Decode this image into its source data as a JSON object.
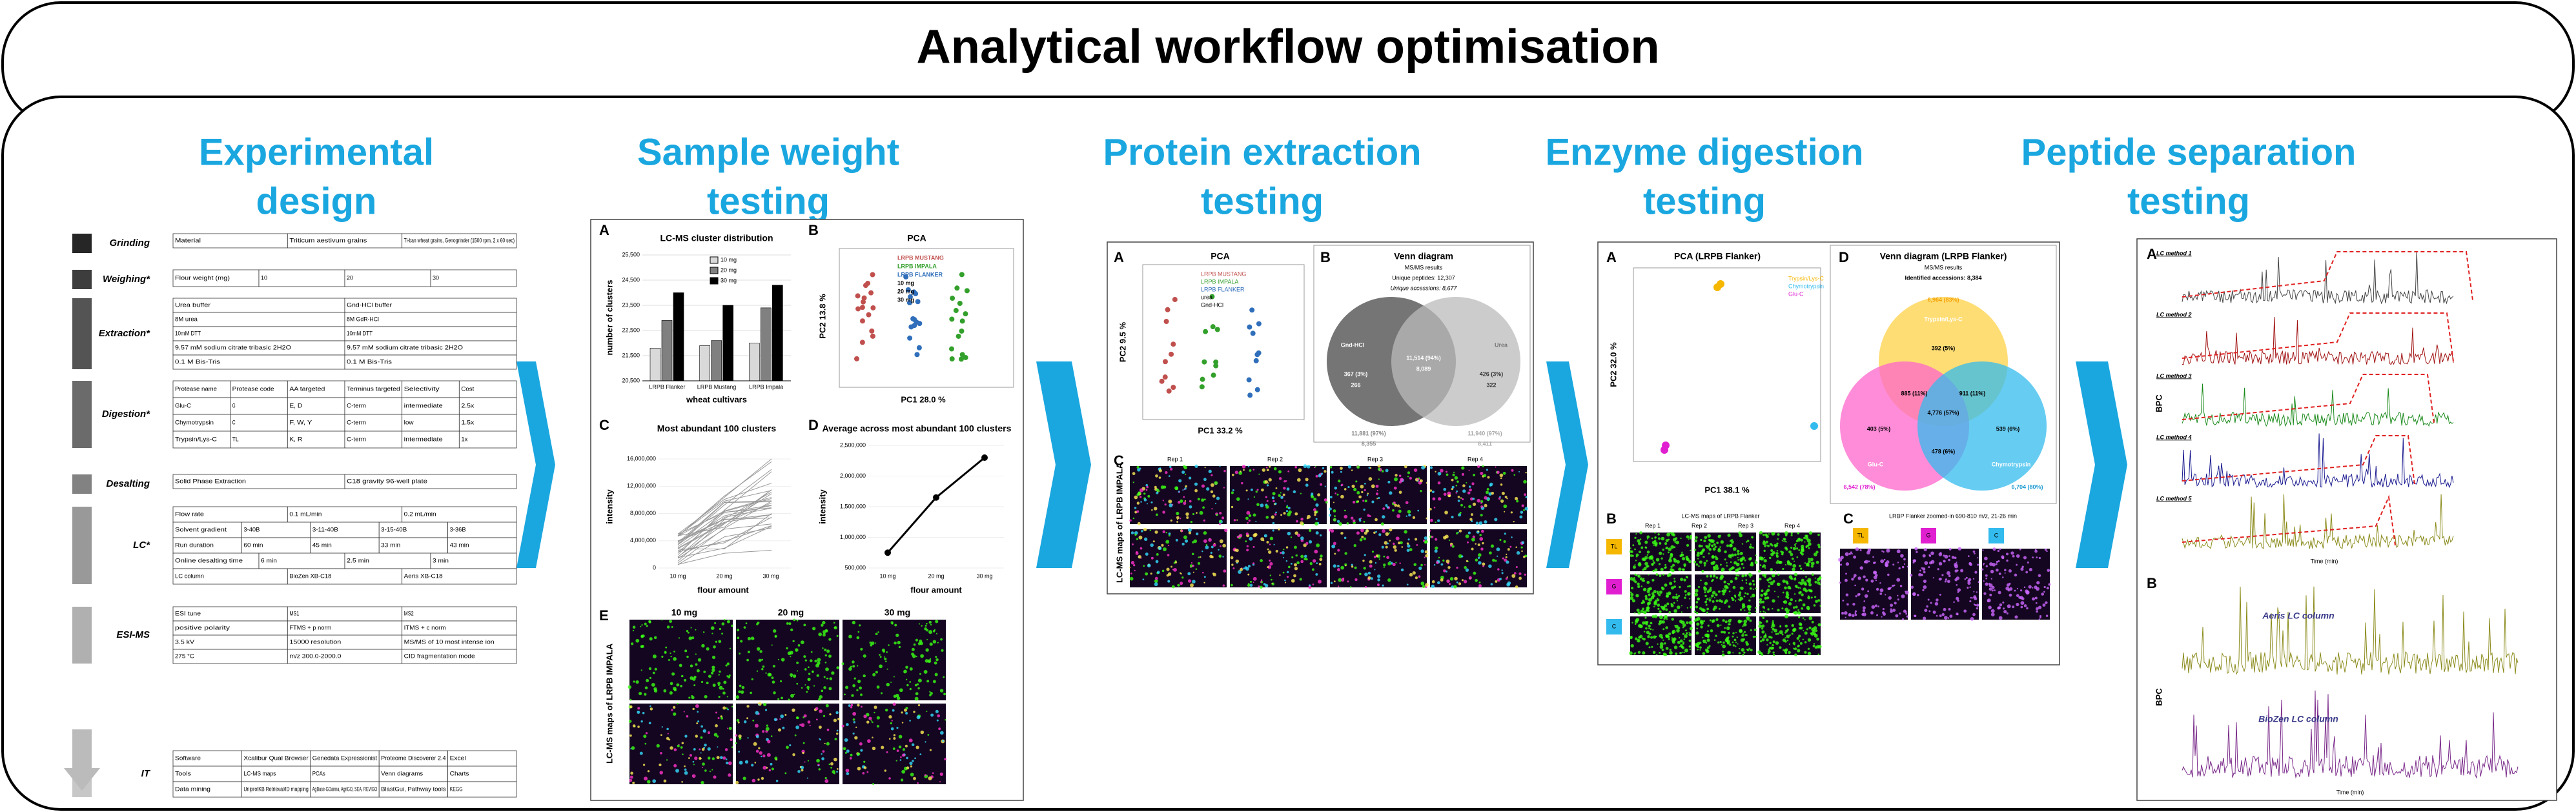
{
  "title": "Analytical workflow optimisation",
  "stages": [
    {
      "heading": [
        "Experimental",
        "design"
      ]
    },
    {
      "heading": [
        "Sample weight",
        "testing"
      ]
    },
    {
      "heading": [
        "Protein extraction",
        "testing"
      ]
    },
    {
      "heading": [
        "Enzyme digestion",
        "testing"
      ]
    },
    {
      "heading": [
        "Peptide separation",
        "testing"
      ]
    }
  ],
  "design": {
    "steps": [
      {
        "name": "Grinding",
        "rows": [
          [
            "Material",
            "Triticum aestivum grains",
            "Ti-ban wheat grains, Genogrinder (1500 rpm, 2 x 60 sec)"
          ]
        ]
      },
      {
        "name": "Weighing*",
        "rows": [
          [
            "Flour weight (mg)",
            "10",
            "20",
            "30"
          ]
        ]
      },
      {
        "name": "Extraction*",
        "rows": [
          [
            "Urea buffer",
            "Gnd-HCl buffer"
          ],
          [
            "8M urea",
            "8M GdR-HCl"
          ],
          [
            "10mM DTT",
            "10mM DTT"
          ],
          [
            "9.57 mM sodium citrate tribasic 2H2O",
            "9.57 mM sodium citrate tribasic 2H2O"
          ],
          [
            "0.1 M Bis-Tris",
            "0.1 M Bis-Tris"
          ]
        ]
      },
      {
        "name": "Digestion*",
        "rows": [
          [
            "Protease name",
            "Protease code",
            "AA targeted",
            "Terminus targeted",
            "Selectivity",
            "Cost"
          ],
          [
            "Glu-C",
            "G",
            "E, D",
            "C-term",
            "intermediate",
            "2.5x"
          ],
          [
            "Chymotrypsin",
            "C",
            "F, W, Y",
            "C-term",
            "low",
            "1.5x"
          ],
          [
            "Trypsin/Lys-C",
            "TL",
            "K, R",
            "C-term",
            "intermediate",
            "1x"
          ]
        ]
      },
      {
        "name": "Desalting",
        "rows": [
          [
            "Solid Phase Extraction",
            "C18 gravity 96-well plate"
          ]
        ]
      },
      {
        "name": "LC*",
        "rows": [
          [
            "Flow rate",
            "0.1 mL/min",
            "0.2 mL/min"
          ],
          [
            "Solvent gradient",
            "3-40B",
            "3-11-40B",
            "3-15-40B",
            "3-36B"
          ],
          [
            "Run duration",
            "60 min",
            "45 min",
            "33 min",
            "43 min"
          ],
          [
            "Online desalting time",
            "6 min",
            "2.5 min",
            "3 min"
          ],
          [
            "LC column",
            "BioZen XB-C18",
            "Aeris XB-C18"
          ]
        ]
      },
      {
        "name": "ESI-MS",
        "rows": [
          [
            "ESI tune",
            "MS1",
            "MS2"
          ],
          [
            "positive polarity",
            "FTMS + p norm",
            "ITMS + c norm"
          ],
          [
            "3.5 kV",
            "15000 resolution",
            "MS/MS of 10 most intense ion"
          ],
          [
            "275 °C",
            "m/z 300.0-2000.0",
            "CID fragmentation mode"
          ]
        ]
      },
      {
        "name": "IT",
        "rows": [
          [
            "Software",
            "Xcalibur Qual Browser",
            "Genedata Expressionist",
            "Proteome Discoverer 2.4",
            "Excel"
          ],
          [
            "Tools",
            "LC-MS maps",
            "PCAs",
            "Venn diagrams",
            "Charts"
          ],
          [
            "Data mining",
            "UniprotKB Retrieval/ID mapping",
            "AgBase-GOanna, AgriGO, SEA, REVIGO",
            "BlastGui, Pathway tools",
            "KEGG"
          ]
        ]
      }
    ]
  },
  "sample_weight": {
    "A": {
      "label": "A",
      "title": "LC-MS cluster distribution",
      "y_label": "number of clusters",
      "x_label": "wheat cultivars",
      "categories": [
        "LRPB Flanker",
        "LRPB Mustang",
        "LRPB Impala"
      ],
      "series": [
        {
          "name": "10 mg",
          "color": "#d9d9d9",
          "values": [
            21800,
            21900,
            22000
          ]
        },
        {
          "name": "20 mg",
          "color": "#808080",
          "values": [
            22900,
            22100,
            23400
          ]
        },
        {
          "name": "30 mg",
          "color": "#000000",
          "values": [
            24000,
            23500,
            24300
          ]
        }
      ],
      "ylim": [
        20500,
        25500
      ],
      "yticks": [
        {
          "value": 20500,
          "label": "20,500"
        },
        {
          "value": 21500,
          "label": "21,500"
        },
        {
          "value": 22500,
          "label": "22,500"
        },
        {
          "value": 23500,
          "label": "23,500"
        },
        {
          "value": 24500,
          "label": "24,500"
        },
        {
          "value": 25500,
          "label": "25,500"
        }
      ]
    },
    "B": {
      "label": "B",
      "title": "PCA",
      "x_label": "PC1 28.0 %",
      "y_label": "PC2 13.8 %",
      "legend": [
        "LRPB MUSTANG",
        "LRPB IMPALA",
        "LRPB FLANKER",
        "10 mg",
        "20 mg",
        "30 mg"
      ]
    },
    "C": {
      "label": "C",
      "title": "Most abundant 100 clusters",
      "y_label": "intensity",
      "x_label": "flour amount",
      "categories": [
        "10 mg",
        "20 mg",
        "30 mg"
      ],
      "ylim": [
        0,
        18000000
      ],
      "yticks": [
        0,
        {
          "value": 4000000,
          "label": "4,000,000"
        },
        {
          "value": 8000000,
          "label": "8,000,000"
        },
        {
          "value": 12000000,
          "label": "12,000,000"
        },
        {
          "value": 16000000,
          "label": "16,000,000"
        }
      ]
    },
    "D": {
      "label": "D",
      "title": "Average across most abundant 100 clusters",
      "y_label": "intensity",
      "x_label": "flour amount",
      "categories": [
        "10 mg",
        "20 mg",
        "30 mg"
      ],
      "values": [
        750000,
        1650000,
        2300000
      ],
      "ylim": [
        500000,
        2500000
      ],
      "yticks": [
        {
          "value": 500000,
          "label": "500,000"
        },
        {
          "value": 1000000,
          "label": "1,000,000"
        },
        {
          "value": 1500000,
          "label": "1,500,000"
        },
        {
          "value": 2000000,
          "label": "2,000,000"
        },
        {
          "value": 2500000,
          "label": "2,500,000"
        }
      ]
    },
    "E": {
      "label": "E",
      "y_label": "LC-MS maps of LRPB IMPALA",
      "columns": [
        "10 mg",
        "20 mg",
        "30 mg"
      ]
    }
  },
  "protein": {
    "A": {
      "label": "A",
      "title": "PCA",
      "x_label": "PC1 33.2 %",
      "y_label": "PC2 9.5 %",
      "legend": [
        "LRPB MUSTANG",
        "LRPB IMPALA",
        "LRPB FLANKER",
        "urea",
        "Gnd-HCl"
      ]
    },
    "B": {
      "label": "B",
      "title": "Venn diagram",
      "subtitle": "MS/MS results",
      "peptides": "Unique peptides: 12,307",
      "accessions": "Unique accessions: 8,677",
      "left": "Gnd-HCl",
      "right": "Urea",
      "center": "11,514 (94%)",
      "center_acc": "8,089",
      "left_only": "367 (3%)",
      "left_acc": "266",
      "right_only": "426 (3%)",
      "right_acc": "322",
      "left_total": "11,881 (97%)",
      "left_total_acc": "8,355",
      "right_total": "11,940 (97%)",
      "right_total_acc": "8,411"
    },
    "C": {
      "label": "C",
      "y_label": "LC-MS maps of LRPB IMPALA",
      "columns": [
        "Rep 1",
        "Rep 2",
        "Rep 3",
        "Rep 4"
      ]
    }
  },
  "enzyme": {
    "A": {
      "label": "A",
      "title": "PCA (LRPB Flanker)",
      "x_label": "PC1 38.1 %",
      "y_label": "PC2 32.0 %",
      "legend": [
        "Trypsin/Lys-C",
        "Chymotrypsin",
        "Glu-C"
      ]
    },
    "D": {
      "label": "D",
      "title": "Venn diagram (LRPB Flanker)",
      "subtitle": "MS/MS results",
      "accessions": "Identified accessions: 8,384",
      "top": "Trypsin/Lys-C",
      "left": "Glu-C",
      "right": "Chymotrypsin",
      "top_total": "6,964 (83%)",
      "left_total": "6,542 (78%)",
      "right_total": "6,704 (80%)",
      "top_only": "392 (5%)",
      "top_left": "885 (11%)",
      "top_right": "911 (11%)",
      "center": "4,776 (57%)",
      "left_only": "403 (5%)",
      "left_right": "478 (6%)",
      "right_only": "539 (6%)"
    },
    "B": {
      "label": "B",
      "title": "LC-MS maps of LRPB Flanker",
      "columns": [
        "Rep 1",
        "Rep 2",
        "Rep 3",
        "Rep 4"
      ],
      "rows": [
        "TL",
        "G",
        "C"
      ]
    },
    "C": {
      "label": "C",
      "title": "LRBP Flanker zoomed-in 690-810 m/z, 21-26 min",
      "columns": [
        "TL",
        "G",
        "C"
      ]
    }
  },
  "peptide": {
    "A": {
      "label": "A",
      "y_label": "BPC",
      "x_label": "Time (min)",
      "methods": [
        "LC method 1",
        "LC method 2",
        "LC method 3",
        "LC method 4",
        "LC method 5"
      ]
    },
    "B": {
      "label": "B",
      "y_label": "BPC",
      "x_label": "Time (min)",
      "traces": [
        "Aeris LC column",
        "BioZen LC column"
      ]
    }
  }
}
